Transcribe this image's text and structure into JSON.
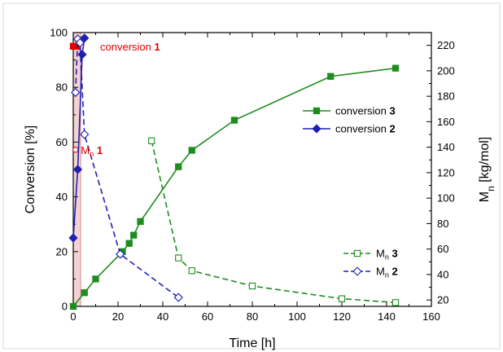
{
  "chart_data": {
    "type": "line",
    "title": "",
    "xlabel": "Time [h]",
    "ylabel_left": "Conversion [%]",
    "ylabel_right_main": "M",
    "ylabel_right_sub": "n",
    "ylabel_right_unit": " [kg/mol]",
    "xlim": [
      0,
      160
    ],
    "ylim_left": [
      0,
      100
    ],
    "ylim_right": [
      15,
      230
    ],
    "x_ticks": [
      0,
      20,
      40,
      60,
      80,
      100,
      120,
      140,
      160
    ],
    "y_left_ticks": [
      0,
      20,
      40,
      60,
      80,
      100
    ],
    "y_right_ticks": [
      20,
      40,
      60,
      80,
      100,
      120,
      140,
      160,
      180,
      200,
      220
    ],
    "grid": false,
    "shaded_region": {
      "x": [
        0,
        3.3
      ],
      "color": "#f5d2d2"
    },
    "colors": {
      "red": "#e00000",
      "green": "#1e8c1e",
      "blue": "#1f1fb4"
    },
    "series": [
      {
        "name": "conversion 1",
        "legend_main": "conversion ",
        "legend_bold": "1",
        "axis": "left",
        "style": "filled-square",
        "color": "#e00000",
        "x": [
          0,
          2
        ],
        "y": [
          95,
          95
        ]
      },
      {
        "name": "M_n 1",
        "legend_main": "M",
        "legend_sub": "n",
        "legend_bold": "1",
        "axis": "right",
        "style": "open-circle",
        "color": "#e00000",
        "x": [
          1
        ],
        "y": [
          138
        ]
      },
      {
        "name": "conversion 3",
        "legend_main": "conversion ",
        "legend_bold": "3",
        "axis": "left",
        "style": "filled-square-solid",
        "color": "#1e8c1e",
        "x": [
          0,
          5,
          10,
          22,
          25,
          27,
          30,
          47,
          53,
          72,
          115,
          144
        ],
        "y": [
          0,
          5,
          10,
          20,
          23,
          26,
          31,
          51,
          57,
          68,
          84,
          87
        ]
      },
      {
        "name": "conversion 2",
        "legend_main": "conversion ",
        "legend_bold": "2",
        "axis": "left",
        "style": "filled-diamond-solid",
        "color": "#1f1fb4",
        "x": [
          0,
          2,
          4,
          5
        ],
        "y": [
          25,
          50,
          92,
          98
        ]
      },
      {
        "name": "M_n 3",
        "legend_main": "M",
        "legend_sub": "n",
        "legend_bold": "3",
        "axis": "right",
        "style": "open-square-dashed",
        "color": "#1e8c1e",
        "x": [
          35,
          47,
          53,
          80,
          120,
          144
        ],
        "y": [
          145,
          53,
          43,
          31,
          21,
          18
        ]
      },
      {
        "name": "M_n 2",
        "legend_main": "M",
        "legend_sub": "n",
        "legend_bold": "2",
        "axis": "right",
        "style": "open-diamond-dashed",
        "color": "#1f1fb4",
        "x": [
          1,
          2,
          3,
          5,
          21,
          47
        ],
        "y": [
          183,
          225,
          222,
          150,
          56,
          22
        ]
      }
    ],
    "annotations": [
      {
        "text_main": "conversion ",
        "text_bold": "1",
        "x": 12,
        "y": 95,
        "color": "#e00000",
        "axis": "left"
      },
      {
        "text_main": "M",
        "text_sub": "n",
        "text_bold": " 1",
        "x": 0.5,
        "y": 138,
        "color": "#e00000",
        "axis": "right"
      }
    ],
    "legend_top": [
      "conversion 3",
      "conversion 2"
    ],
    "legend_bottom": [
      "M_n 3",
      "M_n 2"
    ]
  }
}
